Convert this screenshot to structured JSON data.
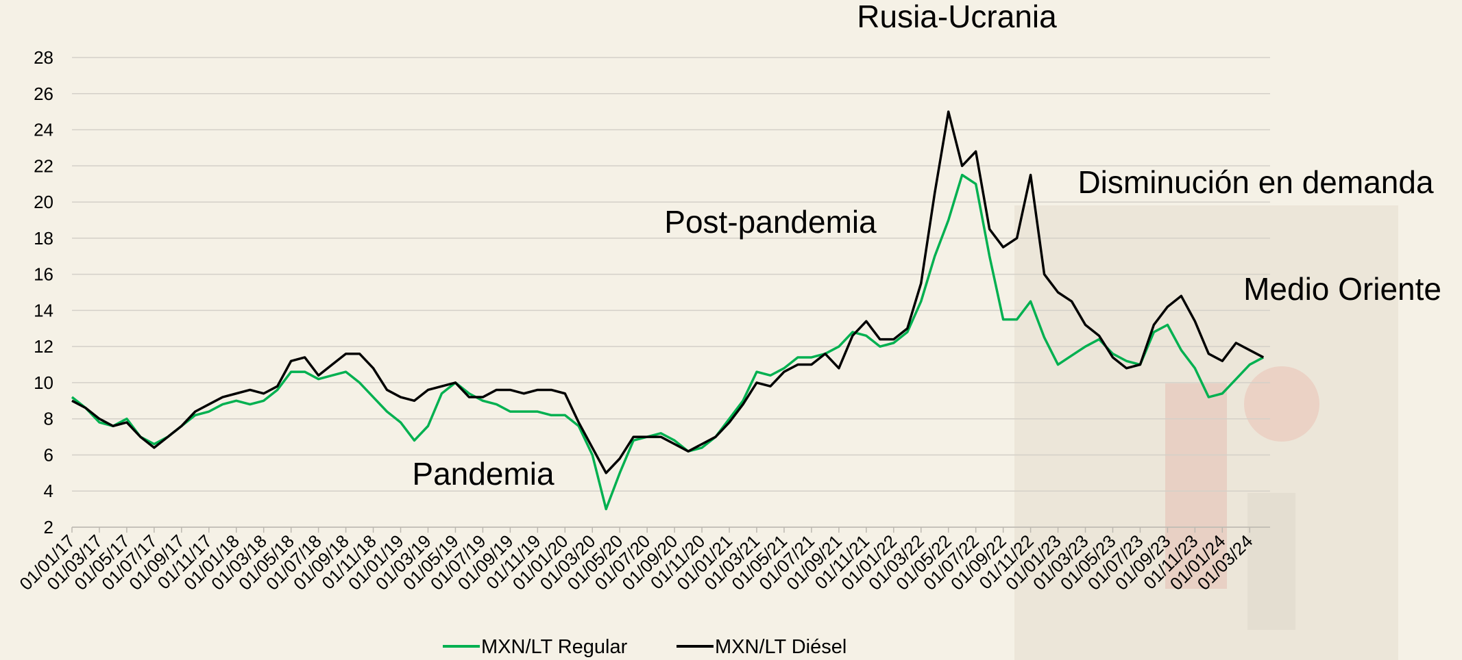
{
  "chart_data": {
    "type": "line",
    "categories": [
      "01/01/17",
      null,
      "01/03/17",
      null,
      "01/05/17",
      null,
      "01/07/17",
      null,
      "01/09/17",
      null,
      "01/11/17",
      null,
      "01/01/18",
      null,
      "01/03/18",
      null,
      "01/05/18",
      null,
      "01/07/18",
      null,
      "01/09/18",
      null,
      "01/11/18",
      null,
      "01/01/19",
      null,
      "01/03/19",
      null,
      "01/05/19",
      null,
      "01/07/19",
      null,
      "01/09/19",
      null,
      "01/11/19",
      null,
      "01/01/20",
      null,
      "01/03/20",
      null,
      "01/05/20",
      null,
      "01/07/20",
      null,
      "01/09/20",
      null,
      "01/11/20",
      null,
      "01/01/21",
      null,
      "01/03/21",
      null,
      "01/05/21",
      null,
      "01/07/21",
      null,
      "01/09/21",
      null,
      "01/11/21",
      null,
      "01/01/22",
      null,
      "01/03/22",
      null,
      "01/05/22",
      null,
      "01/07/22",
      null,
      "01/09/22",
      null,
      "01/11/22",
      null,
      "01/01/23",
      null,
      "01/03/23",
      null,
      "01/05/23",
      null,
      "01/07/23",
      null,
      "01/09/23",
      null,
      "01/11/23",
      null,
      "01/01/24",
      null,
      "01/03/24",
      null
    ],
    "series": [
      {
        "name": "MXN/LT Regular",
        "color": "#00b050",
        "values": [
          9.2,
          8.6,
          7.8,
          7.6,
          8.0,
          7.0,
          6.6,
          7.0,
          7.6,
          8.2,
          8.4,
          8.8,
          9.0,
          8.8,
          9.0,
          9.6,
          10.6,
          10.6,
          10.2,
          10.4,
          10.6,
          10.0,
          9.2,
          8.4,
          7.8,
          6.8,
          7.6,
          9.4,
          10.0,
          9.4,
          9.0,
          8.8,
          8.4,
          8.4,
          8.4,
          8.2,
          8.2,
          7.6,
          6.0,
          3.0,
          5.0,
          6.8,
          7.0,
          7.2,
          6.8,
          6.2,
          6.4,
          7.0,
          8.0,
          9.0,
          10.6,
          10.4,
          10.8,
          11.4,
          11.4,
          11.6,
          12.0,
          12.8,
          12.6,
          12.0,
          12.2,
          12.8,
          14.5,
          17.0,
          19.0,
          21.5,
          21.0,
          17.0,
          13.5,
          13.5,
          14.5,
          12.5,
          11.0,
          11.5,
          12.0,
          12.4,
          11.6,
          11.2,
          11.0,
          12.8,
          13.2,
          11.8,
          10.8,
          9.2,
          9.4,
          10.2,
          11.0,
          11.4
        ]
      },
      {
        "name": "MXN/LT Diésel",
        "color": "#000000",
        "values": [
          9.0,
          8.6,
          8.0,
          7.6,
          7.8,
          7.0,
          6.4,
          7.0,
          7.6,
          8.4,
          8.8,
          9.2,
          9.4,
          9.6,
          9.4,
          9.8,
          11.2,
          11.4,
          10.4,
          11.0,
          11.6,
          11.6,
          10.8,
          9.6,
          9.2,
          9.0,
          9.6,
          9.8,
          10.0,
          9.2,
          9.2,
          9.6,
          9.6,
          9.4,
          9.6,
          9.6,
          9.4,
          7.8,
          6.4,
          5.0,
          5.8,
          7.0,
          7.0,
          7.0,
          6.6,
          6.2,
          6.6,
          7.0,
          7.8,
          8.8,
          10.0,
          9.8,
          10.6,
          11.0,
          11.0,
          11.6,
          10.8,
          12.6,
          13.4,
          12.4,
          12.4,
          13.0,
          15.5,
          20.5,
          25.0,
          22.0,
          22.8,
          18.5,
          17.5,
          18.0,
          21.5,
          16.0,
          15.0,
          14.5,
          13.2,
          12.6,
          11.4,
          10.8,
          11.0,
          13.2,
          14.2,
          14.8,
          13.4,
          11.6,
          11.2,
          12.2,
          11.8,
          11.4
        ]
      }
    ],
    "ylim": [
      2,
      28
    ],
    "yticks": [
      2,
      4,
      6,
      8,
      10,
      12,
      14,
      16,
      18,
      20,
      22,
      24,
      26,
      28
    ],
    "grid": true,
    "annotations": [
      "Rusia-Ucrania",
      "Post-pandemia",
      "Disminución en demanda",
      "Medio Oriente",
      "Pandemia"
    ],
    "legend": "bottom"
  }
}
